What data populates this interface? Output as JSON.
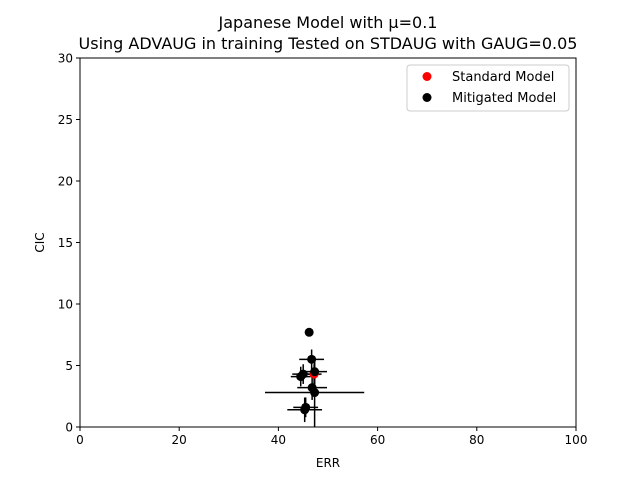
{
  "chart_data": {
    "type": "scatter",
    "title_line1": "Japanese Model with μ=0.1",
    "title_line2": "Using ADVAUG in training Tested on STDAUG with GAUG=0.05",
    "xlabel": "ERR",
    "ylabel": "CIC",
    "xlim": [
      0,
      100
    ],
    "ylim": [
      0,
      30
    ],
    "xticks": [
      0,
      20,
      40,
      60,
      80,
      100
    ],
    "yticks": [
      0,
      5,
      10,
      15,
      20,
      25,
      30
    ],
    "grid": false,
    "legend_position": "top-right",
    "series": [
      {
        "name": "Standard Model",
        "color": "#ff0000",
        "points": [
          {
            "x": 47.2,
            "y": 4.3,
            "xerr": 1.5,
            "yerr": 0.8
          }
        ]
      },
      {
        "name": "Mitigated Model",
        "color": "#000000",
        "points": [
          {
            "x": 46.2,
            "y": 7.7,
            "xerr": 0.0,
            "yerr": 0.0
          },
          {
            "x": 46.7,
            "y": 5.5,
            "xerr": 2.5,
            "yerr": 0.8
          },
          {
            "x": 47.3,
            "y": 4.5,
            "xerr": 2.5,
            "yerr": 1.0
          },
          {
            "x": 45.0,
            "y": 4.3,
            "xerr": 2.2,
            "yerr": 0.8
          },
          {
            "x": 44.5,
            "y": 4.1,
            "xerr": 2.0,
            "yerr": 0.8
          },
          {
            "x": 46.8,
            "y": 3.2,
            "xerr": 3.0,
            "yerr": 1.0
          },
          {
            "x": 47.3,
            "y": 2.8,
            "xerr": 10.0,
            "yerr": 2.8
          },
          {
            "x": 45.5,
            "y": 1.6,
            "xerr": 2.5,
            "yerr": 0.8
          },
          {
            "x": 45.3,
            "y": 1.4,
            "xerr": 3.5,
            "yerr": 1.0
          }
        ]
      }
    ]
  }
}
